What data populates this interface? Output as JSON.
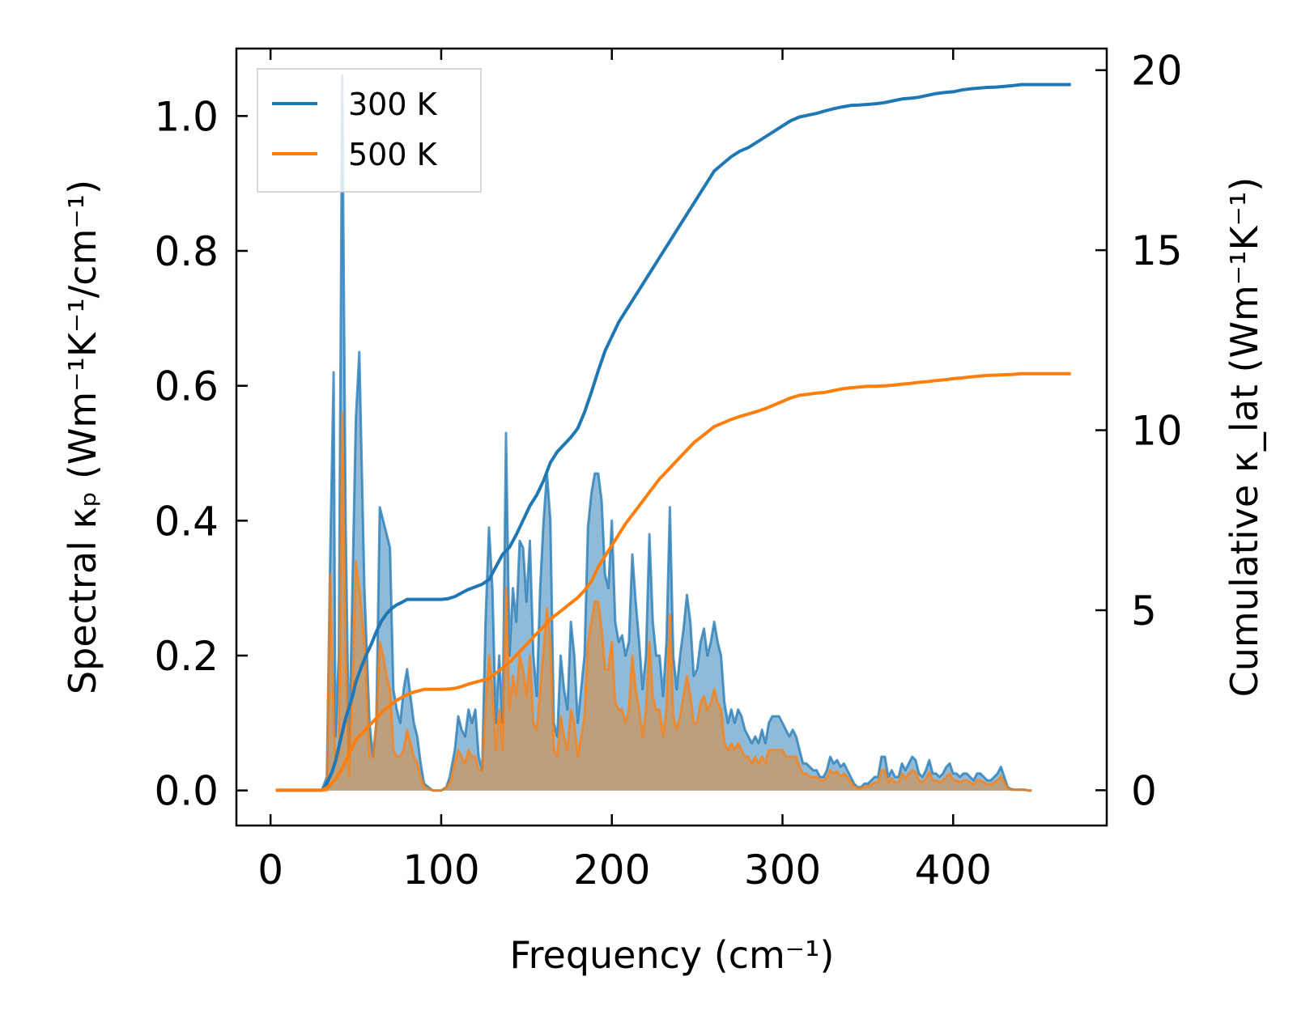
{
  "chart_data": {
    "type": "line",
    "xlabel": "Frequency (cm⁻¹)",
    "ylabel_left": "Spectral κₚ (Wm⁻¹K⁻¹/cm⁻¹)",
    "ylabel_right": "Cumulative κ_lat (Wm⁻¹K⁻¹)",
    "xlim": [
      -20,
      490
    ],
    "ylim_left": [
      -0.052,
      1.1
    ],
    "ylim_right": [
      -0.98,
      20.6
    ],
    "x_ticks": [
      0,
      100,
      200,
      300,
      400
    ],
    "y_ticks_left": [
      0.0,
      0.2,
      0.4,
      0.6,
      0.8,
      1.0
    ],
    "y_ticks_right": [
      0,
      5,
      10,
      15,
      20
    ],
    "legend": {
      "position": "top-left",
      "entries": [
        "300 K",
        "500 K"
      ]
    },
    "colors": {
      "300 K": "#1f77b4",
      "500 K": "#ff7f0e",
      "overlap_fill": "#c49a6c"
    },
    "spectral_x": [
      3,
      30,
      33,
      35,
      37,
      38,
      40,
      42,
      44,
      46,
      48,
      50,
      52,
      55,
      58,
      60,
      62,
      64,
      66,
      68,
      70,
      72,
      74,
      76,
      78,
      80,
      82,
      84,
      86,
      88,
      90,
      95,
      100,
      103,
      105,
      108,
      110,
      112,
      114,
      116,
      118,
      120,
      122,
      124,
      126,
      128,
      130,
      132,
      134,
      136,
      138,
      140,
      142,
      144,
      146,
      148,
      150,
      152,
      154,
      156,
      158,
      160,
      162,
      164,
      166,
      168,
      170,
      172,
      174,
      176,
      178,
      180,
      182,
      184,
      186,
      188,
      190,
      192,
      194,
      196,
      198,
      200,
      202,
      204,
      206,
      208,
      210,
      212,
      214,
      216,
      218,
      220,
      222,
      224,
      226,
      228,
      230,
      232,
      234,
      236,
      238,
      240,
      242,
      244,
      246,
      248,
      250,
      252,
      254,
      256,
      258,
      260,
      262,
      264,
      266,
      268,
      270,
      272,
      274,
      276,
      278,
      280,
      282,
      284,
      286,
      288,
      290,
      292,
      294,
      296,
      298,
      300,
      302,
      304,
      306,
      308,
      310,
      312,
      314,
      316,
      318,
      320,
      322,
      324,
      326,
      328,
      330,
      332,
      334,
      336,
      338,
      340,
      342,
      344,
      346,
      348,
      350,
      352,
      354,
      356,
      358,
      360,
      362,
      364,
      366,
      368,
      370,
      372,
      374,
      376,
      378,
      380,
      382,
      384,
      386,
      388,
      390,
      392,
      394,
      396,
      398,
      400,
      402,
      404,
      406,
      408,
      410,
      412,
      414,
      416,
      418,
      420,
      422,
      424,
      426,
      428,
      430,
      432,
      434,
      436,
      438,
      440,
      442,
      444,
      446,
      448,
      450,
      455,
      460,
      465,
      469
    ],
    "series": [
      {
        "name": "300 K",
        "spectral": [
          0,
          0,
          0.02,
          0.35,
          0.62,
          0.08,
          0.2,
          1.06,
          0.4,
          0.05,
          0.3,
          0.55,
          0.65,
          0.3,
          0.1,
          0.05,
          0.1,
          0.42,
          0.4,
          0.38,
          0.36,
          0.15,
          0.12,
          0.1,
          0.15,
          0.18,
          0.14,
          0.1,
          0.08,
          0.04,
          0.01,
          0,
          0,
          0.005,
          0.02,
          0.06,
          0.11,
          0.09,
          0.08,
          0.12,
          0.1,
          0.12,
          0.05,
          0.03,
          0.25,
          0.39,
          0.3,
          0.1,
          0.2,
          0.1,
          0.53,
          0.2,
          0.3,
          0.25,
          0.37,
          0.36,
          0.28,
          0.37,
          0.2,
          0.14,
          0.3,
          0.4,
          0.47,
          0.4,
          0.1,
          0.08,
          0.2,
          0.15,
          0.12,
          0.25,
          0.2,
          0.1,
          0.15,
          0.2,
          0.39,
          0.44,
          0.47,
          0.47,
          0.43,
          0.32,
          0.3,
          0.4,
          0.25,
          0.22,
          0.23,
          0.2,
          0.22,
          0.35,
          0.28,
          0.22,
          0.15,
          0.2,
          0.38,
          0.25,
          0.2,
          0.2,
          0.14,
          0.22,
          0.42,
          0.2,
          0.15,
          0.2,
          0.24,
          0.29,
          0.25,
          0.17,
          0.18,
          0.22,
          0.24,
          0.2,
          0.22,
          0.25,
          0.22,
          0.2,
          0.13,
          0.1,
          0.12,
          0.1,
          0.12,
          0.11,
          0.09,
          0.08,
          0.07,
          0.08,
          0.07,
          0.09,
          0.07,
          0.1,
          0.11,
          0.11,
          0.11,
          0.1,
          0.09,
          0.08,
          0.09,
          0.08,
          0.06,
          0.04,
          0.04,
          0.035,
          0.03,
          0.03,
          0.02,
          0.02,
          0.03,
          0.05,
          0.04,
          0.045,
          0.035,
          0.04,
          0.03,
          0.02,
          0.01,
          0.005,
          0.005,
          0.01,
          0.01,
          0.015,
          0.02,
          0.02,
          0.05,
          0.05,
          0.02,
          0.03,
          0.02,
          0.02,
          0.04,
          0.03,
          0.04,
          0.05,
          0.045,
          0.025,
          0.02,
          0.03,
          0.045,
          0.025,
          0.025,
          0.02,
          0.025,
          0.035,
          0.04,
          0.025,
          0.025,
          0.02,
          0.025,
          0.025,
          0.02,
          0.015,
          0.025,
          0.025,
          0.02,
          0.015,
          0.015,
          0.02,
          0.025,
          0.035,
          0.02,
          0.005,
          0.002,
          0.001,
          0.001,
          0.001,
          0.001,
          0,
          0
        ],
        "cumulative_x": [
          3,
          30,
          32,
          34,
          36,
          38,
          40,
          42,
          44,
          46,
          48,
          50,
          53,
          56,
          59,
          62,
          65,
          68,
          71,
          74,
          77,
          80,
          84,
          88,
          92,
          96,
          100,
          104,
          108,
          112,
          116,
          120,
          124,
          128,
          132,
          136,
          140,
          144,
          148,
          152,
          156,
          160,
          164,
          168,
          172,
          176,
          180,
          184,
          188,
          192,
          196,
          200,
          204,
          208,
          212,
          216,
          220,
          224,
          228,
          232,
          236,
          240,
          244,
          248,
          252,
          256,
          260,
          265,
          270,
          275,
          280,
          285,
          290,
          295,
          300,
          305,
          310,
          315,
          320,
          325,
          330,
          335,
          340,
          345,
          350,
          355,
          360,
          365,
          370,
          375,
          380,
          385,
          390,
          395,
          400,
          405,
          410,
          415,
          420,
          425,
          430,
          435,
          440,
          445,
          450,
          455,
          460,
          469
        ],
        "cumulative": [
          0,
          0,
          0.1,
          0.3,
          0.5,
          0.8,
          1.2,
          1.6,
          2.0,
          2.3,
          2.6,
          3.0,
          3.4,
          3.75,
          4.05,
          4.4,
          4.7,
          4.9,
          5.05,
          5.15,
          5.22,
          5.3,
          5.3,
          5.3,
          5.3,
          5.3,
          5.3,
          5.32,
          5.38,
          5.48,
          5.58,
          5.65,
          5.72,
          5.85,
          6.2,
          6.55,
          6.75,
          7.1,
          7.5,
          7.9,
          8.2,
          8.6,
          9.1,
          9.4,
          9.6,
          9.8,
          10.05,
          10.5,
          11.05,
          11.65,
          12.2,
          12.6,
          13.0,
          13.3,
          13.6,
          13.9,
          14.2,
          14.5,
          14.8,
          15.1,
          15.4,
          15.7,
          16.0,
          16.3,
          16.6,
          16.9,
          17.2,
          17.4,
          17.6,
          17.75,
          17.85,
          18.0,
          18.15,
          18.3,
          18.45,
          18.6,
          18.7,
          18.75,
          18.8,
          18.87,
          18.93,
          18.98,
          19.02,
          19.03,
          19.05,
          19.07,
          19.1,
          19.15,
          19.2,
          19.22,
          19.25,
          19.3,
          19.35,
          19.38,
          19.4,
          19.45,
          19.48,
          19.5,
          19.52,
          19.53,
          19.55,
          19.57,
          19.6,
          19.6,
          19.6,
          19.6,
          19.6,
          19.6
        ]
      },
      {
        "name": "500 K",
        "spectral": [
          0,
          0,
          0,
          0.32,
          0.1,
          0.05,
          0.05,
          0.56,
          0.2,
          0.02,
          0.15,
          0.34,
          0.3,
          0.22,
          0.05,
          0.05,
          0.1,
          0.22,
          0.2,
          0.17,
          0.15,
          0.06,
          0.05,
          0.05,
          0.06,
          0.09,
          0.07,
          0.05,
          0.04,
          0.02,
          0.005,
          0,
          0,
          0.005,
          0.01,
          0.04,
          0.06,
          0.05,
          0.04,
          0.06,
          0.05,
          0.05,
          0.03,
          0.03,
          0.12,
          0.2,
          0.15,
          0.06,
          0.12,
          0.06,
          0.3,
          0.12,
          0.17,
          0.14,
          0.2,
          0.18,
          0.14,
          0.2,
          0.1,
          0.09,
          0.15,
          0.21,
          0.27,
          0.22,
          0.06,
          0.05,
          0.11,
          0.08,
          0.06,
          0.12,
          0.1,
          0.05,
          0.08,
          0.11,
          0.22,
          0.25,
          0.28,
          0.28,
          0.24,
          0.18,
          0.18,
          0.22,
          0.13,
          0.12,
          0.12,
          0.1,
          0.12,
          0.2,
          0.15,
          0.12,
          0.08,
          0.12,
          0.22,
          0.14,
          0.12,
          0.12,
          0.08,
          0.12,
          0.26,
          0.11,
          0.09,
          0.11,
          0.14,
          0.17,
          0.14,
          0.1,
          0.1,
          0.13,
          0.14,
          0.12,
          0.13,
          0.15,
          0.13,
          0.12,
          0.07,
          0.06,
          0.07,
          0.06,
          0.07,
          0.06,
          0.05,
          0.05,
          0.04,
          0.05,
          0.04,
          0.05,
          0.04,
          0.06,
          0.06,
          0.06,
          0.06,
          0.06,
          0.05,
          0.05,
          0.05,
          0.05,
          0.035,
          0.025,
          0.025,
          0.02,
          0.02,
          0.02,
          0.015,
          0.015,
          0.02,
          0.03,
          0.025,
          0.028,
          0.02,
          0.025,
          0.02,
          0.012,
          0.006,
          0.003,
          0.003,
          0.006,
          0.006,
          0.009,
          0.012,
          0.012,
          0.03,
          0.03,
          0.012,
          0.018,
          0.012,
          0.012,
          0.025,
          0.018,
          0.025,
          0.03,
          0.027,
          0.015,
          0.012,
          0.018,
          0.027,
          0.015,
          0.015,
          0.012,
          0.015,
          0.021,
          0.025,
          0.015,
          0.015,
          0.012,
          0.015,
          0.015,
          0.012,
          0.009,
          0.015,
          0.015,
          0.012,
          0.009,
          0.009,
          0.012,
          0.015,
          0.021,
          0.012,
          0.003,
          0.001,
          0.001,
          0.001,
          0.001,
          0.001,
          0,
          0
        ],
        "cumulative_x": [
          3,
          30,
          34,
          38,
          42,
          46,
          50,
          54,
          58,
          62,
          66,
          70,
          74,
          78,
          82,
          86,
          90,
          94,
          100,
          104,
          108,
          112,
          116,
          120,
          124,
          128,
          132,
          136,
          140,
          144,
          148,
          152,
          156,
          160,
          164,
          168,
          172,
          176,
          180,
          184,
          188,
          192,
          196,
          200,
          204,
          208,
          212,
          216,
          220,
          224,
          228,
          232,
          236,
          240,
          244,
          248,
          252,
          256,
          260,
          265,
          270,
          275,
          280,
          285,
          290,
          295,
          300,
          305,
          310,
          315,
          320,
          325,
          330,
          335,
          340,
          345,
          350,
          355,
          360,
          365,
          370,
          375,
          380,
          385,
          390,
          395,
          400,
          405,
          410,
          415,
          420,
          425,
          430,
          435,
          440,
          445,
          450,
          455,
          460,
          469
        ],
        "cumulative": [
          0,
          0,
          0.1,
          0.3,
          0.6,
          1.0,
          1.4,
          1.6,
          1.8,
          2.0,
          2.2,
          2.35,
          2.5,
          2.6,
          2.7,
          2.75,
          2.8,
          2.8,
          2.8,
          2.81,
          2.83,
          2.88,
          2.95,
          3.0,
          3.05,
          3.1,
          3.25,
          3.4,
          3.55,
          3.75,
          3.95,
          4.15,
          4.35,
          4.55,
          4.75,
          4.9,
          5.05,
          5.2,
          5.35,
          5.55,
          5.8,
          6.2,
          6.5,
          6.8,
          7.1,
          7.4,
          7.65,
          7.9,
          8.15,
          8.4,
          8.65,
          8.85,
          9.05,
          9.25,
          9.45,
          9.65,
          9.8,
          9.95,
          10.1,
          10.2,
          10.3,
          10.38,
          10.45,
          10.52,
          10.6,
          10.7,
          10.8,
          10.9,
          10.97,
          11.0,
          11.03,
          11.05,
          11.1,
          11.15,
          11.18,
          11.2,
          11.22,
          11.22,
          11.23,
          11.25,
          11.28,
          11.3,
          11.33,
          11.35,
          11.38,
          11.4,
          11.43,
          11.45,
          11.48,
          11.5,
          11.52,
          11.53,
          11.54,
          11.55,
          11.57,
          11.57,
          11.57,
          11.57,
          11.57,
          11.57
        ]
      }
    ]
  }
}
